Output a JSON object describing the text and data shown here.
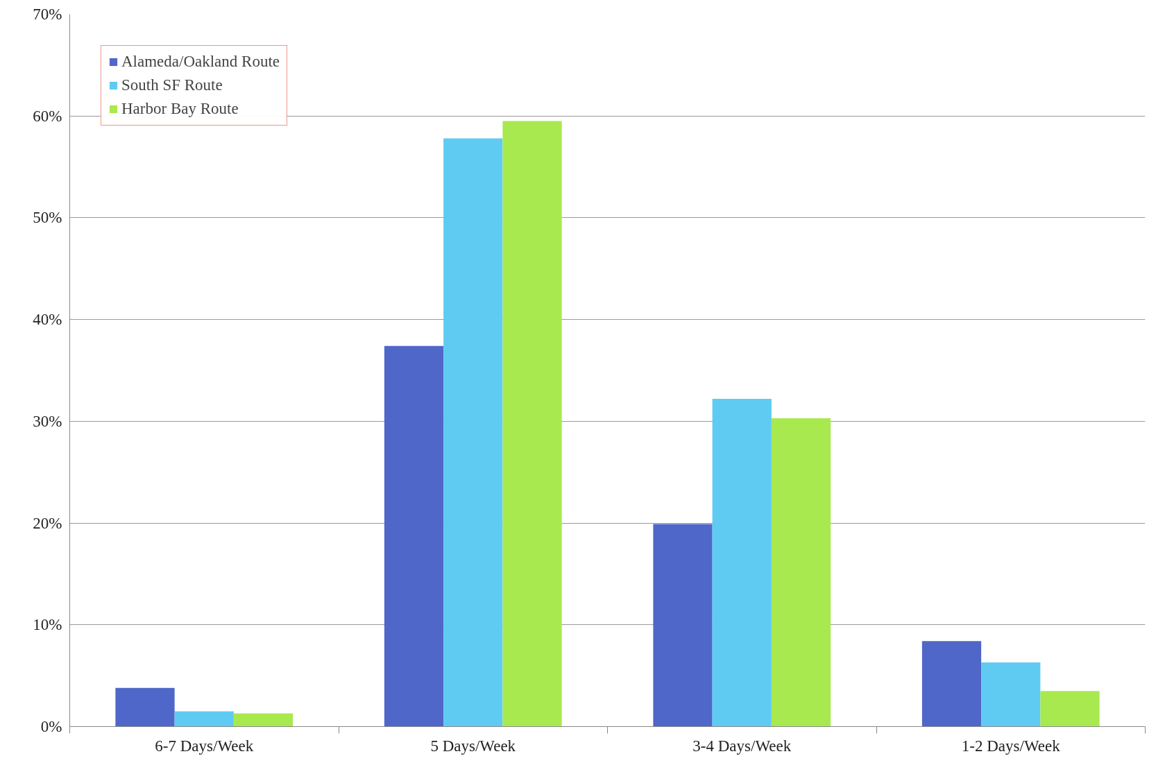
{
  "chart_data": {
    "type": "bar",
    "categories": [
      "6-7 Days/Week",
      "5 Days/Week",
      "3-4 Days/Week",
      "1-2 Days/Week"
    ],
    "series": [
      {
        "name": "Alameda/Oakland Route",
        "color": "#4f67c8",
        "values": [
          3.8,
          37.4,
          19.9,
          8.4
        ]
      },
      {
        "name": "South SF Route",
        "color": "#5fcbf2",
        "values": [
          1.5,
          57.8,
          32.2,
          6.3
        ]
      },
      {
        "name": "Harbor Bay Route",
        "color": "#a8e94f",
        "values": [
          1.3,
          59.5,
          30.3,
          3.5
        ]
      }
    ],
    "ylim": [
      0,
      70
    ],
    "yticks": [
      {
        "value": 0,
        "label": "0%"
      },
      {
        "value": 10,
        "label": "10%"
      },
      {
        "value": 20,
        "label": "20%"
      },
      {
        "value": 30,
        "label": "30%"
      },
      {
        "value": 40,
        "label": "40%"
      },
      {
        "value": 50,
        "label": "50%"
      },
      {
        "value": 60,
        "label": "60%"
      },
      {
        "value": 70,
        "label": "70%"
      }
    ],
    "grid": "y",
    "legend": "top left"
  }
}
